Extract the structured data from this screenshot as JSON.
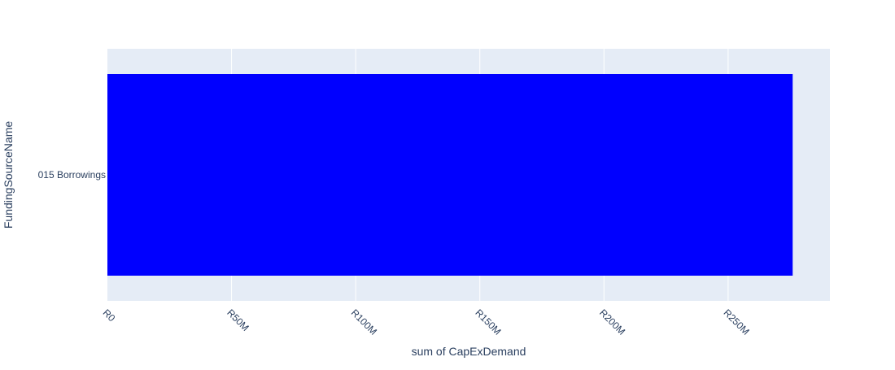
{
  "chart_data": {
    "type": "bar",
    "orientation": "horizontal",
    "categories": [
      "015 Borrowings"
    ],
    "values": [
      276000000
    ],
    "xlabel": "sum of CapExDemand",
    "ylabel": "FundingSourceName",
    "xlim": [
      0,
      291000000
    ],
    "x_ticks": [
      {
        "value": 0,
        "label": "R0"
      },
      {
        "value": 50000000,
        "label": "R50M"
      },
      {
        "value": 100000000,
        "label": "R100M"
      },
      {
        "value": 150000000,
        "label": "R150M"
      },
      {
        "value": 200000000,
        "label": "R200M"
      },
      {
        "value": 250000000,
        "label": "R250M"
      }
    ],
    "grid": true,
    "legend": "none"
  },
  "colors": {
    "bar": "#0000ff",
    "plot_background": "#e5ecf6",
    "grid": "#ffffff",
    "text": "#2a3f5f"
  }
}
